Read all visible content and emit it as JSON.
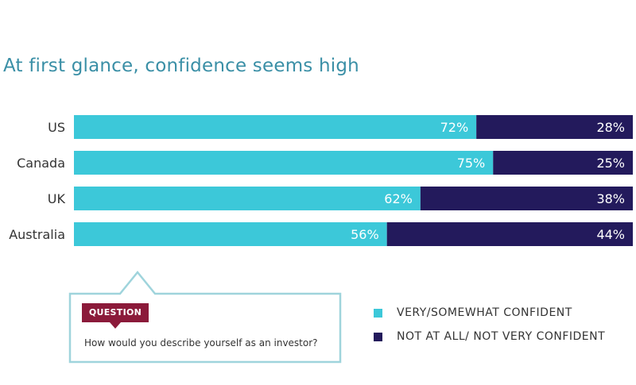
{
  "title": "At first glance, confidence seems high",
  "colors": {
    "confident": "#3cc8d9",
    "not_confident": "#231a5c",
    "title": "#3a8fa6",
    "question_badge": "#8b1a3a",
    "question_border": "#9fd4dc"
  },
  "question": {
    "badge": "QUESTION",
    "text": "How would you describe yourself as an investor?"
  },
  "legend": [
    {
      "label": "VERY/SOMEWHAT CONFIDENT",
      "color": "#3cc8d9"
    },
    {
      "label": "NOT AT ALL/ NOT VERY CONFIDENT",
      "color": "#231a5c"
    }
  ],
  "chart_data": {
    "type": "bar",
    "orientation": "horizontal",
    "stacked": true,
    "categories": [
      "US",
      "Canada",
      "UK",
      "Australia"
    ],
    "series": [
      {
        "name": "VERY/SOMEWHAT CONFIDENT",
        "values": [
          72,
          75,
          62,
          56
        ],
        "labels": [
          "72%",
          "75%",
          "62%",
          "56%"
        ]
      },
      {
        "name": "NOT AT ALL/ NOT VERY CONFIDENT",
        "values": [
          28,
          25,
          38,
          44
        ],
        "labels": [
          "28%",
          "25%",
          "38%",
          "44%"
        ]
      }
    ],
    "xlim": [
      0,
      100
    ],
    "grid": false,
    "legend_position": "bottom-right"
  }
}
